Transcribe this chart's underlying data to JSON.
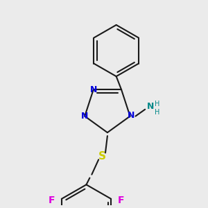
{
  "background_color": "#ebebeb",
  "bond_color": "#1a1a1a",
  "bond_width": 1.5,
  "figsize": [
    3.0,
    3.0
  ],
  "dpi": 100,
  "colors": {
    "N": "#0000dd",
    "S": "#cccc00",
    "F": "#dd00dd",
    "NH": "#008888",
    "C": "#1a1a1a"
  }
}
